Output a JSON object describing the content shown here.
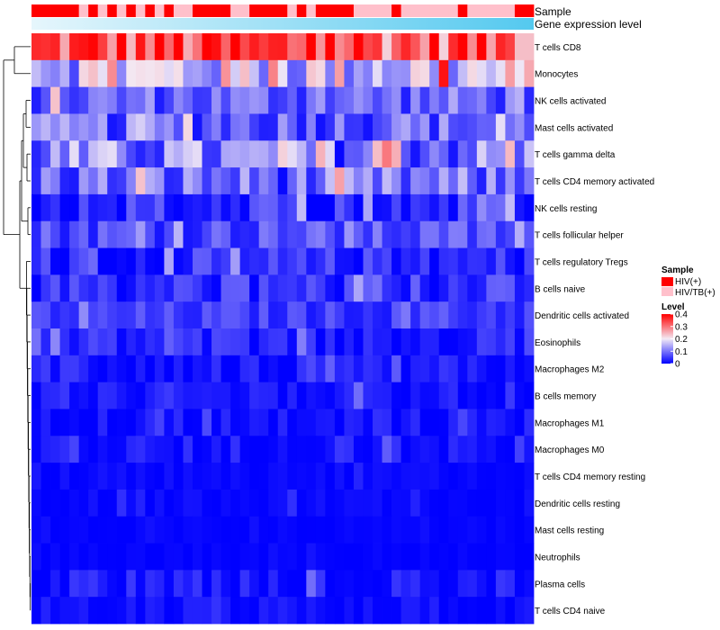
{
  "chart_data": {
    "type": "heatmap",
    "title": "",
    "annotation_tracks": [
      {
        "name": "Sample",
        "kind": "categorical"
      },
      {
        "name": "Gene expression level",
        "kind": "continuous_gradient",
        "colors": [
          "#e6f6fc",
          "#54c9ef"
        ]
      }
    ],
    "sample_groups": {
      "HIV(+)": "#ff0000",
      "HIV/TB(+)": "#ffc0cb"
    },
    "sample_sequence": [
      "HIV(+)",
      "HIV(+)",
      "HIV(+)",
      "HIV(+)",
      "HIV(+)",
      "HIV/TB(+)",
      "HIV(+)",
      "HIV/TB(+)",
      "HIV(+)",
      "HIV/TB(+)",
      "HIV(+)",
      "HIV/TB(+)",
      "HIV(+)",
      "HIV/TB(+)",
      "HIV(+)",
      "HIV/TB(+)",
      "HIV/TB(+)",
      "HIV(+)",
      "HIV(+)",
      "HIV(+)",
      "HIV(+)",
      "HIV/TB(+)",
      "HIV/TB(+)",
      "HIV(+)",
      "HIV(+)",
      "HIV(+)",
      "HIV(+)",
      "HIV/TB(+)",
      "HIV(+)",
      "HIV/TB(+)",
      "HIV(+)",
      "HIV(+)",
      "HIV(+)",
      "HIV(+)",
      "HIV/TB(+)",
      "HIV/TB(+)",
      "HIV/TB(+)",
      "HIV/TB(+)",
      "HIV(+)",
      "HIV/TB(+)",
      "HIV/TB(+)",
      "HIV/TB(+)",
      "HIV/TB(+)",
      "HIV/TB(+)",
      "HIV/TB(+)",
      "HIV(+)",
      "HIV/TB(+)",
      "HIV/TB(+)",
      "HIV/TB(+)",
      "HIV/TB(+)",
      "HIV/TB(+)",
      "HIV(+)",
      "HIV(+)"
    ],
    "rows": [
      "T cells CD8",
      "Monocytes",
      "NK cells activated",
      "Mast cells activated",
      "T cells gamma delta",
      "T cells CD4 memory activated",
      "NK cells resting",
      "T cells follicular helper",
      "T cells regulatory  Tregs",
      "B cells naive",
      "Dendritic cells activated",
      "Eosinophils",
      "Macrophages M2",
      "B cells memory",
      "Macrophages M1",
      "Macrophages M0",
      "T cells CD4 memory resting",
      "Dendritic cells resting",
      "Mast cells resting",
      "Neutrophils",
      "Plasma cells",
      "T cells CD4 naive"
    ],
    "row_means": [
      0.33,
      0.17,
      0.085,
      0.085,
      0.1,
      0.085,
      0.04,
      0.065,
      0.025,
      0.04,
      0.05,
      0.03,
      0.02,
      0.018,
      0.012,
      0.012,
      0.005,
      0.004,
      0.002,
      0.002,
      0.01,
      0.005
    ],
    "row_spread": [
      0.07,
      0.07,
      0.04,
      0.045,
      0.06,
      0.05,
      0.035,
      0.03,
      0.035,
      0.03,
      0.02,
      0.025,
      0.02,
      0.02,
      0.018,
      0.02,
      0.008,
      0.01,
      0.004,
      0.004,
      0.025,
      0.015
    ],
    "n_columns": 53,
    "legend": {
      "sample_title": "Sample",
      "sample_entries": [
        {
          "label": "HIV(+)",
          "color": "#ff0000"
        },
        {
          "label": "HIV/TB(+)",
          "color": "#ffc0cb"
        }
      ],
      "level_title": "Level",
      "level_ticks": [
        "0.4",
        "0.3",
        "0.2",
        "0.1",
        "0"
      ],
      "level_tick_values": [
        0.4,
        0.3,
        0.2,
        0.1,
        0
      ],
      "color_scale": {
        "low": "#0000ff",
        "mid": "#f3eaf5",
        "high": "#ff0000",
        "min": 0,
        "mid_value": 0.2,
        "max": 0.4
      }
    }
  }
}
